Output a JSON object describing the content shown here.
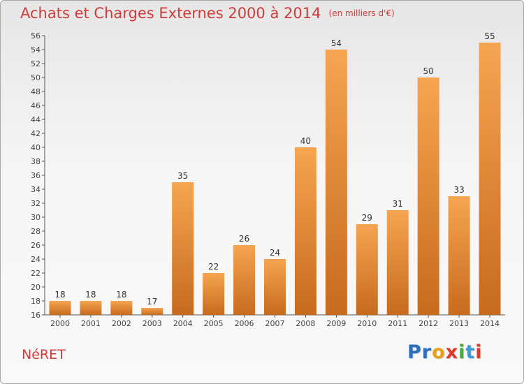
{
  "title": "Achats et Charges Externes 2000 à 2014",
  "subtitle": "(en milliers d'€)",
  "commune": "NéRET",
  "logo": {
    "letters": [
      "P",
      "r",
      "o",
      "x",
      "i",
      "t",
      "i"
    ],
    "colors": [
      "#2e6fbf",
      "#2e6fbf",
      "#e8a21a",
      "#e23a2a",
      "#4aa83a",
      "#3a9ad9",
      "#e23a2a"
    ]
  },
  "colors": {
    "accent": "#d23a3a",
    "bar_light": "#f6a552",
    "bar_dark": "#c76a1d",
    "axis": "#555555"
  },
  "chart_data": {
    "type": "bar",
    "categories": [
      "2000",
      "2001",
      "2002",
      "2003",
      "2004",
      "2005",
      "2006",
      "2007",
      "2008",
      "2009",
      "2010",
      "2011",
      "2012",
      "2013",
      "2014"
    ],
    "values": [
      18,
      18,
      18,
      17,
      35,
      22,
      26,
      24,
      40,
      54,
      29,
      31,
      50,
      33,
      55
    ],
    "title": "Achats et Charges Externes 2000 à 2014",
    "ylim": [
      16,
      56
    ],
    "yticks": [
      16,
      18,
      20,
      22,
      24,
      26,
      28,
      30,
      32,
      34,
      36,
      38,
      40,
      42,
      44,
      46,
      48,
      50,
      52,
      54,
      56
    ],
    "grid": false,
    "legend": "none"
  }
}
